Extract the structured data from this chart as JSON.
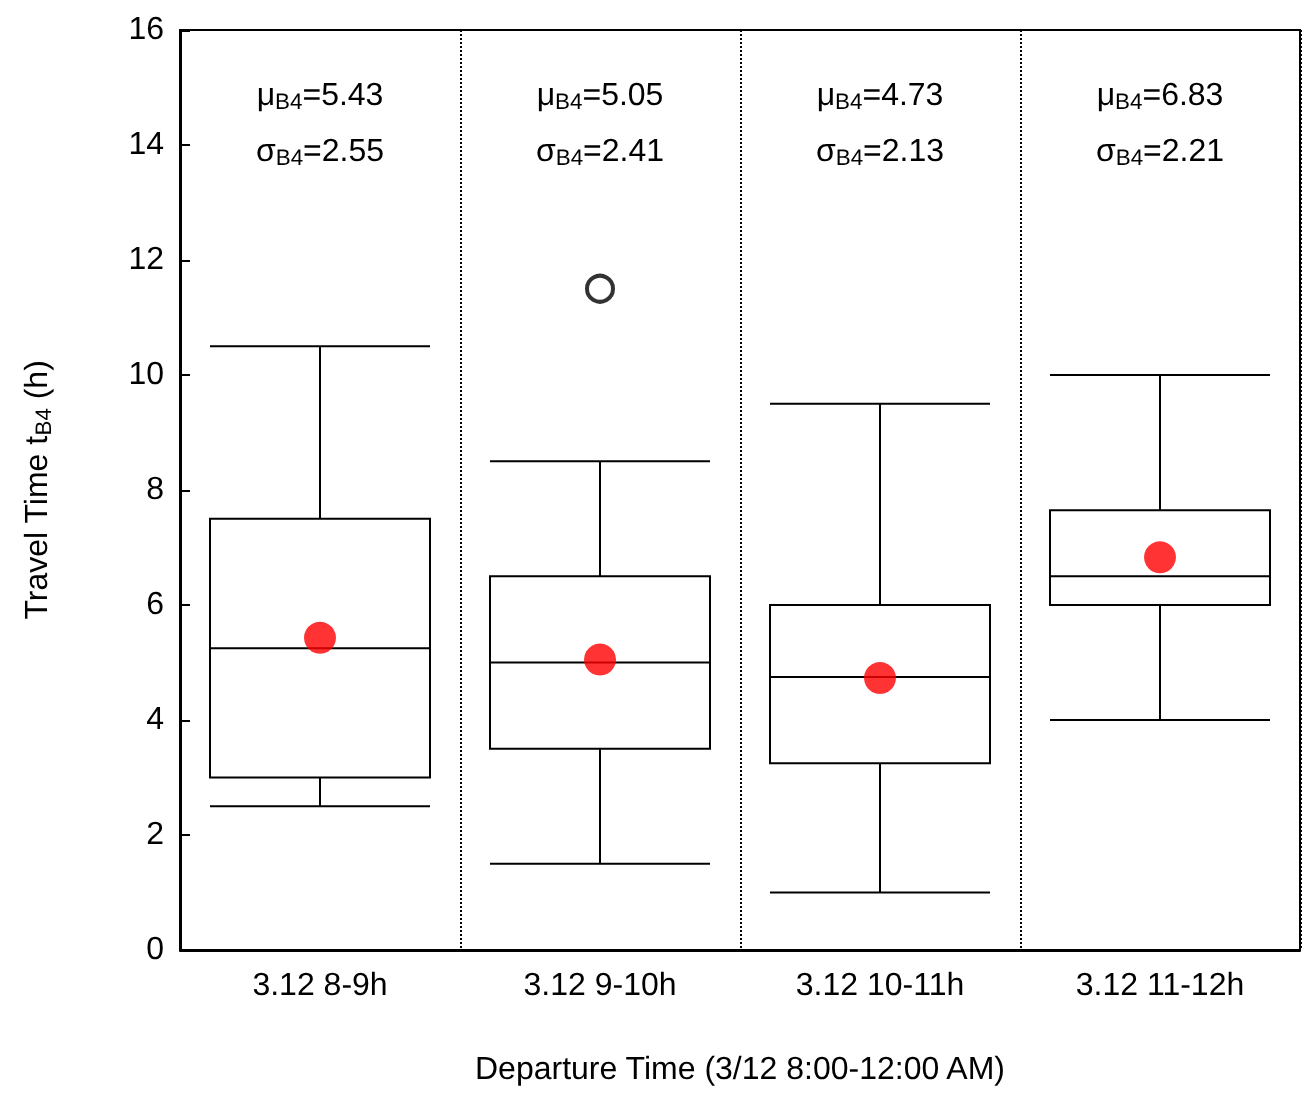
{
  "chart_data": {
    "type": "box",
    "xlabel": "Departure Time (3/12 8:00-12:00 AM)",
    "ylabel": "Travel Time t$_{B4}$ (h)",
    "categories": [
      "3.12 8-9h",
      "3.12 9-10h",
      "3.12 10-11h",
      "3.12 11-12h"
    ],
    "ylim": [
      0,
      16
    ],
    "yticks": [
      0,
      2,
      4,
      6,
      8,
      10,
      12,
      14,
      16
    ],
    "grid": "x",
    "boxes": [
      {
        "low": 2.5,
        "q1": 3,
        "median": 5.25,
        "q3": 7.5,
        "high": 10.5
      },
      {
        "low": 1.5,
        "q1": 3.5,
        "median": 5,
        "q3": 6.5,
        "high": 8.5,
        "outliers": [
          11.5
        ]
      },
      {
        "low": 1,
        "q1": 3.25,
        "median": 4.75,
        "q3": 6,
        "high": 9.5
      },
      {
        "low": 4,
        "q1": 6,
        "median": 6.5,
        "q3": 7.65,
        "high": 10
      }
    ],
    "series": [
      {
        "type": "scatter",
        "color": "#ff0000",
        "x": [
          "3.12 8-9h",
          "3.12 9-10h",
          "3.12 10-11h",
          "3.12 11-12h"
        ],
        "values": [
          5.43,
          5.05,
          4.73,
          6.83
        ],
        "marker": "circle"
      }
    ],
    "annotations": [
      "μ$_{B4}$=5.43",
      "σ$_{B4}$=2.55",
      "μ$_{B4}$=5.05",
      "σ$_{B4}$=2.41",
      "μ$_{B4}$=4.73",
      "σ$_{B4}$=2.13",
      "μ$_{B4}$=6.83",
      "σ$_{B4}$=2.21"
    ]
  }
}
